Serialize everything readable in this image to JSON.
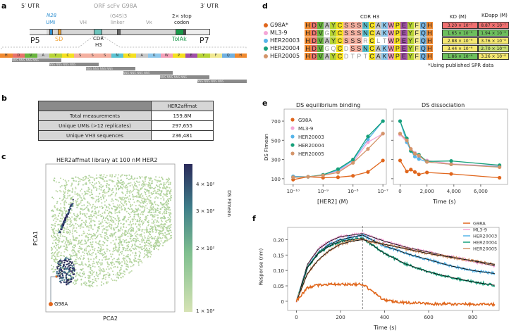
{
  "panel_labels": [
    "a",
    "b",
    "c",
    "d",
    "e",
    "f"
  ],
  "a": {
    "utr5": "5′ UTR",
    "orf": "ORF scFv G98A",
    "utr3": "3′ UTR",
    "umi_n": "N28",
    "umi": "UMI",
    "vh": "VH",
    "linker_top": "(G4S)3",
    "linker": "linker",
    "vk": "Vκ",
    "stop1": "2× stop",
    "stop2": "codon",
    "p5": "P5",
    "sd": "SD",
    "cdr1": "CDR",
    "cdr2": "H3",
    "tolak": "TolAk",
    "p7": "P7",
    "residues": [
      "H",
      "D",
      "V",
      "A",
      "Y",
      "C",
      "S",
      "S",
      "S",
      "N",
      "C",
      "A",
      "K",
      "W",
      "P",
      "E",
      "Y",
      "F",
      "Q",
      "H"
    ],
    "nns_unit": "NNS",
    "nns_rows": 6,
    "colors": {
      "umi": "#2f8fd0",
      "sd": "#f0a030",
      "cdr": "#6cc4bc",
      "linker": "#666666",
      "tolak": "#1a9a4a"
    }
  },
  "b": {
    "header": "HER2affmat",
    "rows": [
      [
        "Total measurements",
        "159.8M"
      ],
      [
        "Unique UMIs (>12 replicates)",
        "297,655"
      ],
      [
        "Unique VH3 sequences",
        "236,481"
      ]
    ]
  },
  "aa_colors": {
    "H": "#f08a30",
    "D": "#e8736b",
    "V": "#6ab43e",
    "A": "#c8c8c8",
    "Y": "#b7d436",
    "C": "#f5e020",
    "S": "#f4b0a0",
    "N": "#5bc4d4",
    "K": "#8ec8ec",
    "W": "#f4a0b8",
    "P": "#f5e020",
    "E": "#a050a8",
    "F": "#f0e890",
    "Q": "#70b0e0",
    "G": "#ffffff",
    "R": "#ffffff",
    "L": "#ffffff",
    "T": "#ffffff"
  },
  "d": {
    "cdr_header": "CDR H3",
    "kd_header": "KD (M)",
    "kapp_header": "KDapp (M)",
    "footnote": "*Using published SPR data",
    "rows": [
      {
        "name": "G98A*",
        "color": "#e0661c",
        "seq": "HDVAYCSSSNCAKWPEYFQH",
        "mut": [],
        "kd": "3.20 × 10⁻⁷",
        "kd_color": "#f07070",
        "kapp": "8.87 × 10⁻⁷",
        "kapp_color": "#f07070"
      },
      {
        "name": "ML3-9",
        "color": "#f4a6d7",
        "seq": "HDVGYCSSSNCAKWPEYFQH",
        "mut": [
          3
        ],
        "kd": "1.65 × 10⁻⁹",
        "kd_color": "#6cbf5c",
        "kapp": "1.94 × 10⁻⁹",
        "kapp_color": "#6cbf5c"
      },
      {
        "name": "HER20003",
        "color": "#56b4e9",
        "seq": "HDVAYCSSSRCLTWPEYFQH",
        "mut": [
          9,
          11,
          12
        ],
        "kd": "2.88 × 10⁻⁹",
        "kd_color": "#f5e870",
        "kapp": "3.76 × 10⁻⁸",
        "kapp_color": "#f5e870"
      },
      {
        "name": "HER20004",
        "color": "#16a07a",
        "seq": "HDVGQCDSSNCAKWPEYFQH",
        "mut": [
          3,
          4,
          6
        ],
        "kd": "3.44 × 10⁻⁹",
        "kd_color": "#f5e870",
        "kapp": "2.70 × 10⁻⁹",
        "kapp_color": "#c5dc70"
      },
      {
        "name": "HER20005",
        "color": "#d4956a",
        "seq": "HDVAYCDTPTCAKWPEYFQH",
        "mut": [
          6,
          7,
          8,
          9
        ],
        "kd": "1.86 × 10⁻⁹",
        "kd_color": "#6cbf5c",
        "kapp": "3.26 × 10⁻⁸",
        "kapp_color": "#f5e870"
      }
    ]
  },
  "chart_data": [
    {
      "type": "scatter",
      "title": "HER2affmat library at 100 nM HER2",
      "xlabel": "PCA2",
      "ylabel": "PCA1",
      "colorbar": {
        "label": "DS FImean",
        "ticks": [
          "4 × 10²",
          "3 × 10²",
          "2 × 10²",
          "1 × 10²"
        ],
        "range": [
          100,
          450
        ],
        "colors": [
          "#d6e3b4",
          "#7fbf8f",
          "#3f7f8a",
          "#2a2a5a"
        ]
      },
      "annotation": "G98A"
    },
    {
      "type": "line",
      "title": "DS equilibrium binding",
      "xlabel": "[HER2] (M)",
      "ylabel": "DS FImean",
      "xscale": "log",
      "xlim": [
        5e-11,
        1.3e-07
      ],
      "ylim": [
        40,
        825
      ],
      "xticks": [
        "10⁻¹⁰",
        "10⁻⁹",
        "10⁻⁸",
        "10⁻⁷"
      ],
      "yticks": [
        "100",
        "300",
        "500",
        "700"
      ],
      "x": [
        1e-10,
        3.16e-10,
        1e-09,
        3.16e-09,
        1e-08,
        3.16e-08,
        1e-07
      ],
      "series": [
        {
          "name": "G98A",
          "color": "#e0661c",
          "values": [
            90,
            120,
            110,
            115,
            130,
            170,
            290
          ]
        },
        {
          "name": "ML3-9",
          "color": "#f4a6d7",
          "values": [
            115,
            120,
            135,
            180,
            270,
            480,
            570
          ]
        },
        {
          "name": "HER20003",
          "color": "#56b4e9",
          "values": [
            125,
            120,
            140,
            190,
            290,
            510,
            700
          ]
        },
        {
          "name": "HER20004",
          "color": "#16a07a",
          "values": [
            115,
            120,
            140,
            200,
            300,
            540,
            700
          ]
        },
        {
          "name": "HER20005",
          "color": "#d4956a",
          "values": [
            115,
            120,
            135,
            165,
            265,
            410,
            570
          ]
        }
      ],
      "legend": "top-left"
    },
    {
      "type": "line",
      "title": "DS dissociation",
      "xlabel": "Time (s)",
      "xlim": [
        -500,
        8000
      ],
      "ylim": [
        40,
        825
      ],
      "xticks": [
        "0",
        "2,000",
        "4,000",
        "6,000"
      ],
      "x": [
        0,
        500,
        800,
        1100,
        1400,
        2000,
        3800,
        7400
      ],
      "series": [
        {
          "name": "G98A",
          "values": [
            290,
            175,
            195,
            170,
            145,
            165,
            150,
            110
          ]
        },
        {
          "name": "ML3-9",
          "values": [
            560,
            480,
            410,
            370,
            330,
            290,
            255,
            230
          ]
        },
        {
          "name": "HER20003",
          "values": [
            700,
            480,
            390,
            330,
            305,
            275,
            250,
            225
          ]
        },
        {
          "name": "HER20004",
          "values": [
            700,
            520,
            390,
            360,
            350,
            280,
            285,
            240
          ]
        },
        {
          "name": "HER20005",
          "values": [
            570,
            500,
            410,
            360,
            340,
            275,
            250,
            220
          ]
        }
      ]
    },
    {
      "type": "line",
      "xlabel": "Time (s)",
      "ylabel": "Response (nm)",
      "xlim": [
        -40,
        920
      ],
      "ylim": [
        -0.03,
        0.24
      ],
      "xticks": [
        "0",
        "200",
        "400",
        "600",
        "800"
      ],
      "yticks": [
        "0",
        "0.05",
        "0.10",
        "0.15",
        "0.20"
      ],
      "dissociation_start": 300,
      "x": [
        0,
        50,
        100,
        150,
        200,
        250,
        300,
        400,
        500,
        600,
        700,
        800,
        900
      ],
      "series": [
        {
          "name": "G98A",
          "color": "#e0661c",
          "values": [
            0,
            0.045,
            0.052,
            0.055,
            0.055,
            0.055,
            0.055,
            0.003,
            -0.005,
            -0.008,
            -0.009,
            -0.01,
            -0.01
          ]
        },
        {
          "name": "ML3-9",
          "color": "#f4a6d7",
          "values": [
            0,
            0.12,
            0.17,
            0.195,
            0.21,
            0.215,
            0.22,
            0.195,
            0.175,
            0.16,
            0.145,
            0.13,
            0.115
          ]
        },
        {
          "name": "HER20003",
          "color": "#56b4e9",
          "values": [
            0,
            0.11,
            0.16,
            0.185,
            0.2,
            0.208,
            0.215,
            0.18,
            0.155,
            0.135,
            0.115,
            0.1,
            0.09
          ]
        },
        {
          "name": "HER20004",
          "color": "#16a07a",
          "values": [
            0,
            0.11,
            0.155,
            0.18,
            0.195,
            0.2,
            0.205,
            0.155,
            0.12,
            0.095,
            0.078,
            0.063,
            0.052
          ]
        },
        {
          "name": "HER20005",
          "color": "#d4956a",
          "values": [
            0,
            0.09,
            0.135,
            0.165,
            0.185,
            0.195,
            0.2,
            0.185,
            0.17,
            0.155,
            0.143,
            0.132,
            0.12
          ]
        }
      ],
      "legend": "top-right"
    }
  ]
}
